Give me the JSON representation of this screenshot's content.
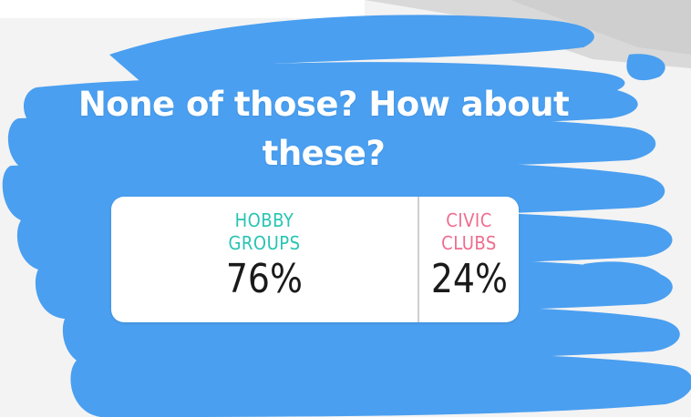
{
  "question": {
    "line1": "None of those? How about",
    "line2": "these?"
  },
  "poll": {
    "options": [
      {
        "label_line1": "HOBBY",
        "label_line2": "GROUPS",
        "percent_text": "76%",
        "percent": 76,
        "color": "#27c4b3"
      },
      {
        "label_line1": "CIVIC",
        "label_line2": "CLUBS",
        "percent_text": "24%",
        "percent": 24,
        "color": "#ef6c8e"
      }
    ]
  },
  "colors": {
    "scribble": "#4a9ff0",
    "card": "#ffffff",
    "question_text": "#ffffff"
  }
}
